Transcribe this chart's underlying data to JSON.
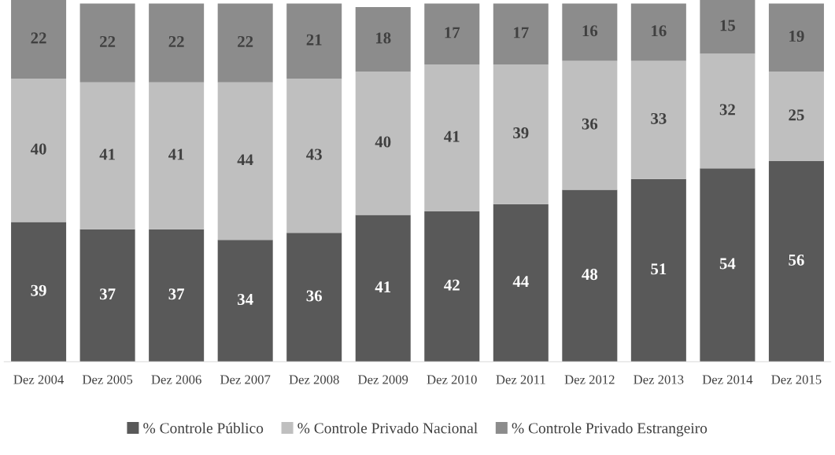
{
  "chart_data": {
    "type": "bar",
    "stacked": true,
    "data_labels": true,
    "legend": "bottom",
    "grid": false,
    "tick_labels": "x",
    "categories": [
      "Dez 2004",
      "Dez 2005",
      "Dez 2006",
      "Dez 2007",
      "Dez 2008",
      "Dez 2009",
      "Dez 2010",
      "Dez 2011",
      "Dez 2012",
      "Dez 2013",
      "Dez 2014",
      "Dez 2015"
    ],
    "series": [
      {
        "name": "% Controle Público",
        "color": "#595959",
        "values": [
          39,
          37,
          37,
          34,
          36,
          41,
          42,
          44,
          48,
          51,
          54,
          56
        ]
      },
      {
        "name": "% Controle Privado Nacional",
        "color": "#bfbfbf",
        "values": [
          40,
          41,
          41,
          44,
          43,
          40,
          41,
          39,
          36,
          33,
          32,
          25
        ]
      },
      {
        "name": "% Controle Privado Estrangeiro",
        "color": "#8c8c8c",
        "values": [
          22,
          22,
          22,
          22,
          21,
          18,
          17,
          17,
          16,
          16,
          15,
          19
        ]
      }
    ]
  }
}
